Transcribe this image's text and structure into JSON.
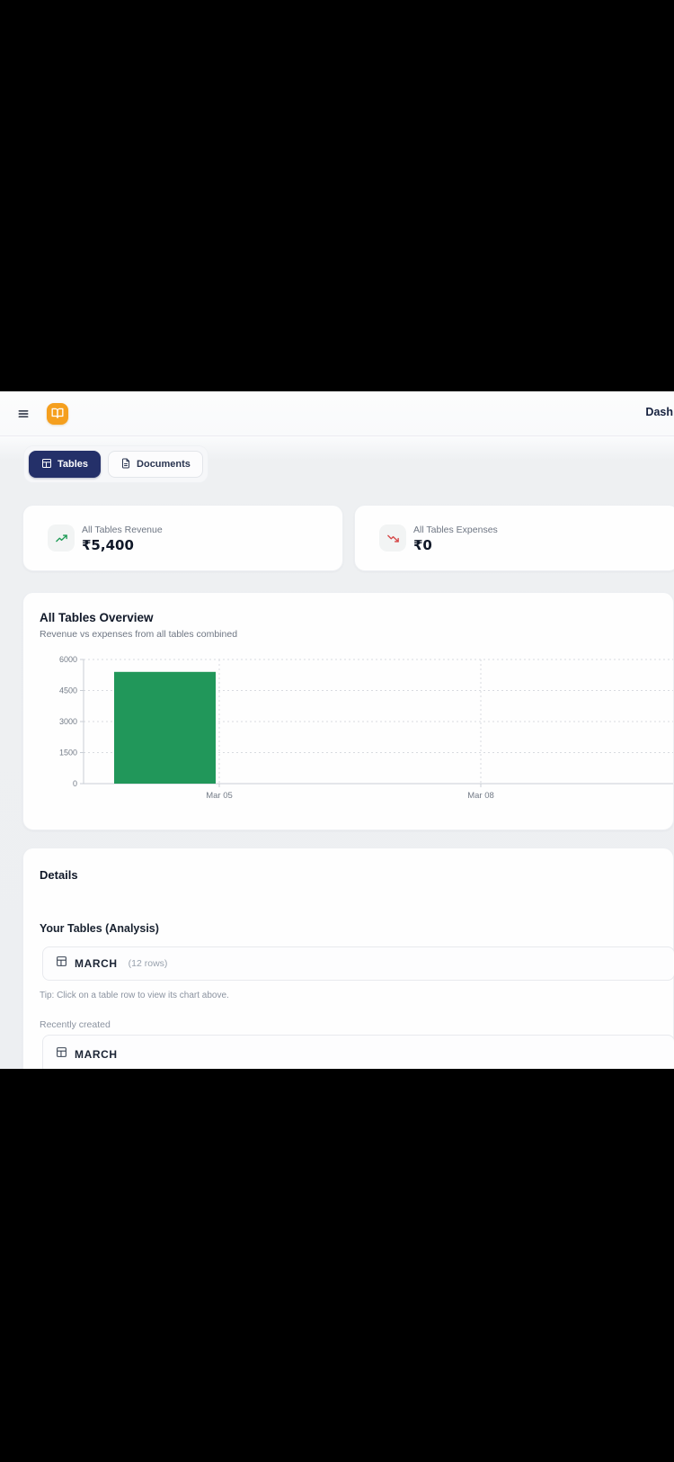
{
  "header": {
    "title": "Dash"
  },
  "tabs": {
    "items": [
      {
        "label": "Tables",
        "active": true
      },
      {
        "label": "Documents",
        "active": false
      }
    ]
  },
  "stats": {
    "cards": [
      {
        "label": "All Tables Revenue",
        "value": "₹5,400",
        "trend": "up"
      },
      {
        "label": "All Tables Expenses",
        "value": "₹0",
        "trend": "down"
      }
    ]
  },
  "overview": {
    "title": "All Tables Overview",
    "subtitle": "Revenue vs expenses from all tables combined"
  },
  "chart_data": {
    "type": "bar",
    "categories": [
      "Mar 05",
      "Mar 08"
    ],
    "series": [
      {
        "name": "revenue",
        "color": "#21975a",
        "values": [
          5400,
          0
        ]
      },
      {
        "name": "expenses",
        "color": "#d64545",
        "values": [
          0,
          0
        ]
      }
    ],
    "title": "All Tables Overview",
    "xlabel": "",
    "ylabel": "",
    "ylim": [
      0,
      6000
    ],
    "yticks": [
      0,
      1500,
      3000,
      4500,
      6000
    ],
    "grid": true,
    "legend": false
  },
  "details": {
    "heading": "Details",
    "analysis_heading": "Your Tables (Analysis)",
    "analysis_tables": [
      {
        "name": "MARCH",
        "meta": "(12 rows)"
      }
    ],
    "tip": "Tip: Click on a table row to view its chart above.",
    "recent_heading": "Recently created",
    "recent_tables": [
      {
        "name": "MARCH"
      }
    ]
  },
  "colors": {
    "accent_navy": "#243069",
    "brand_orange": "#f59f1e",
    "revenue_green": "#21975a",
    "expense_red": "#d64545",
    "page_bg": "#edeff2"
  },
  "icons": {
    "menu-icon": "hamburger menu",
    "app-logo-icon": "open book",
    "table-icon": "table grid",
    "document-icon": "file with text",
    "trending-up-icon": "upward trend arrow",
    "trending-down-icon": "downward trend arrow"
  }
}
